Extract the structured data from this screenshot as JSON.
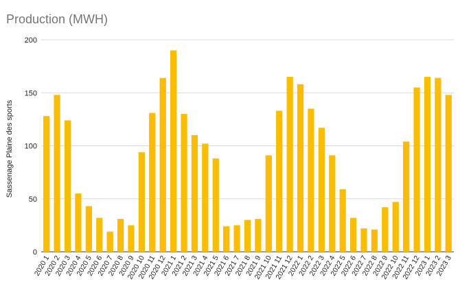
{
  "chart_data": {
    "type": "bar",
    "title": "Production (MWH)",
    "xlabel": "",
    "ylabel": "Sassenage Plaine des sports",
    "ylim": [
      0,
      200
    ],
    "yticks": [
      0,
      50,
      100,
      150,
      200
    ],
    "grid": true,
    "legend": "none",
    "colors": {
      "bar": "#FBBC04",
      "grid": "#d9d9d9",
      "axis": "#333333"
    },
    "categories": [
      "2020 1",
      "2020 2",
      "2020 3",
      "2020 4",
      "2020 5",
      "2020 6",
      "2020 7",
      "2020 8",
      "2020 9",
      "2020 10",
      "2020 11",
      "2020 12",
      "2021 1",
      "2021 2",
      "2021 3",
      "2021 4",
      "2021 5",
      "2021 6",
      "2021 7",
      "2021 8",
      "2021 9",
      "2021 10",
      "2021 11",
      "2021 12",
      "2022 1",
      "2022 2",
      "2022 3",
      "2022 4",
      "2022 5",
      "2022 6",
      "2022 7",
      "2022 8",
      "2022 9",
      "2022 10",
      "2022 11",
      "2022 12",
      "2023 1",
      "2023 2",
      "2023 3"
    ],
    "values": [
      128,
      148,
      124,
      55,
      43,
      32,
      19,
      31,
      25,
      94,
      131,
      164,
      190,
      130,
      110,
      102,
      88,
      24,
      25,
      30,
      31,
      91,
      133,
      165,
      158,
      135,
      117,
      91,
      59,
      32,
      22,
      21,
      42,
      47,
      104,
      155,
      165,
      164,
      148
    ]
  }
}
